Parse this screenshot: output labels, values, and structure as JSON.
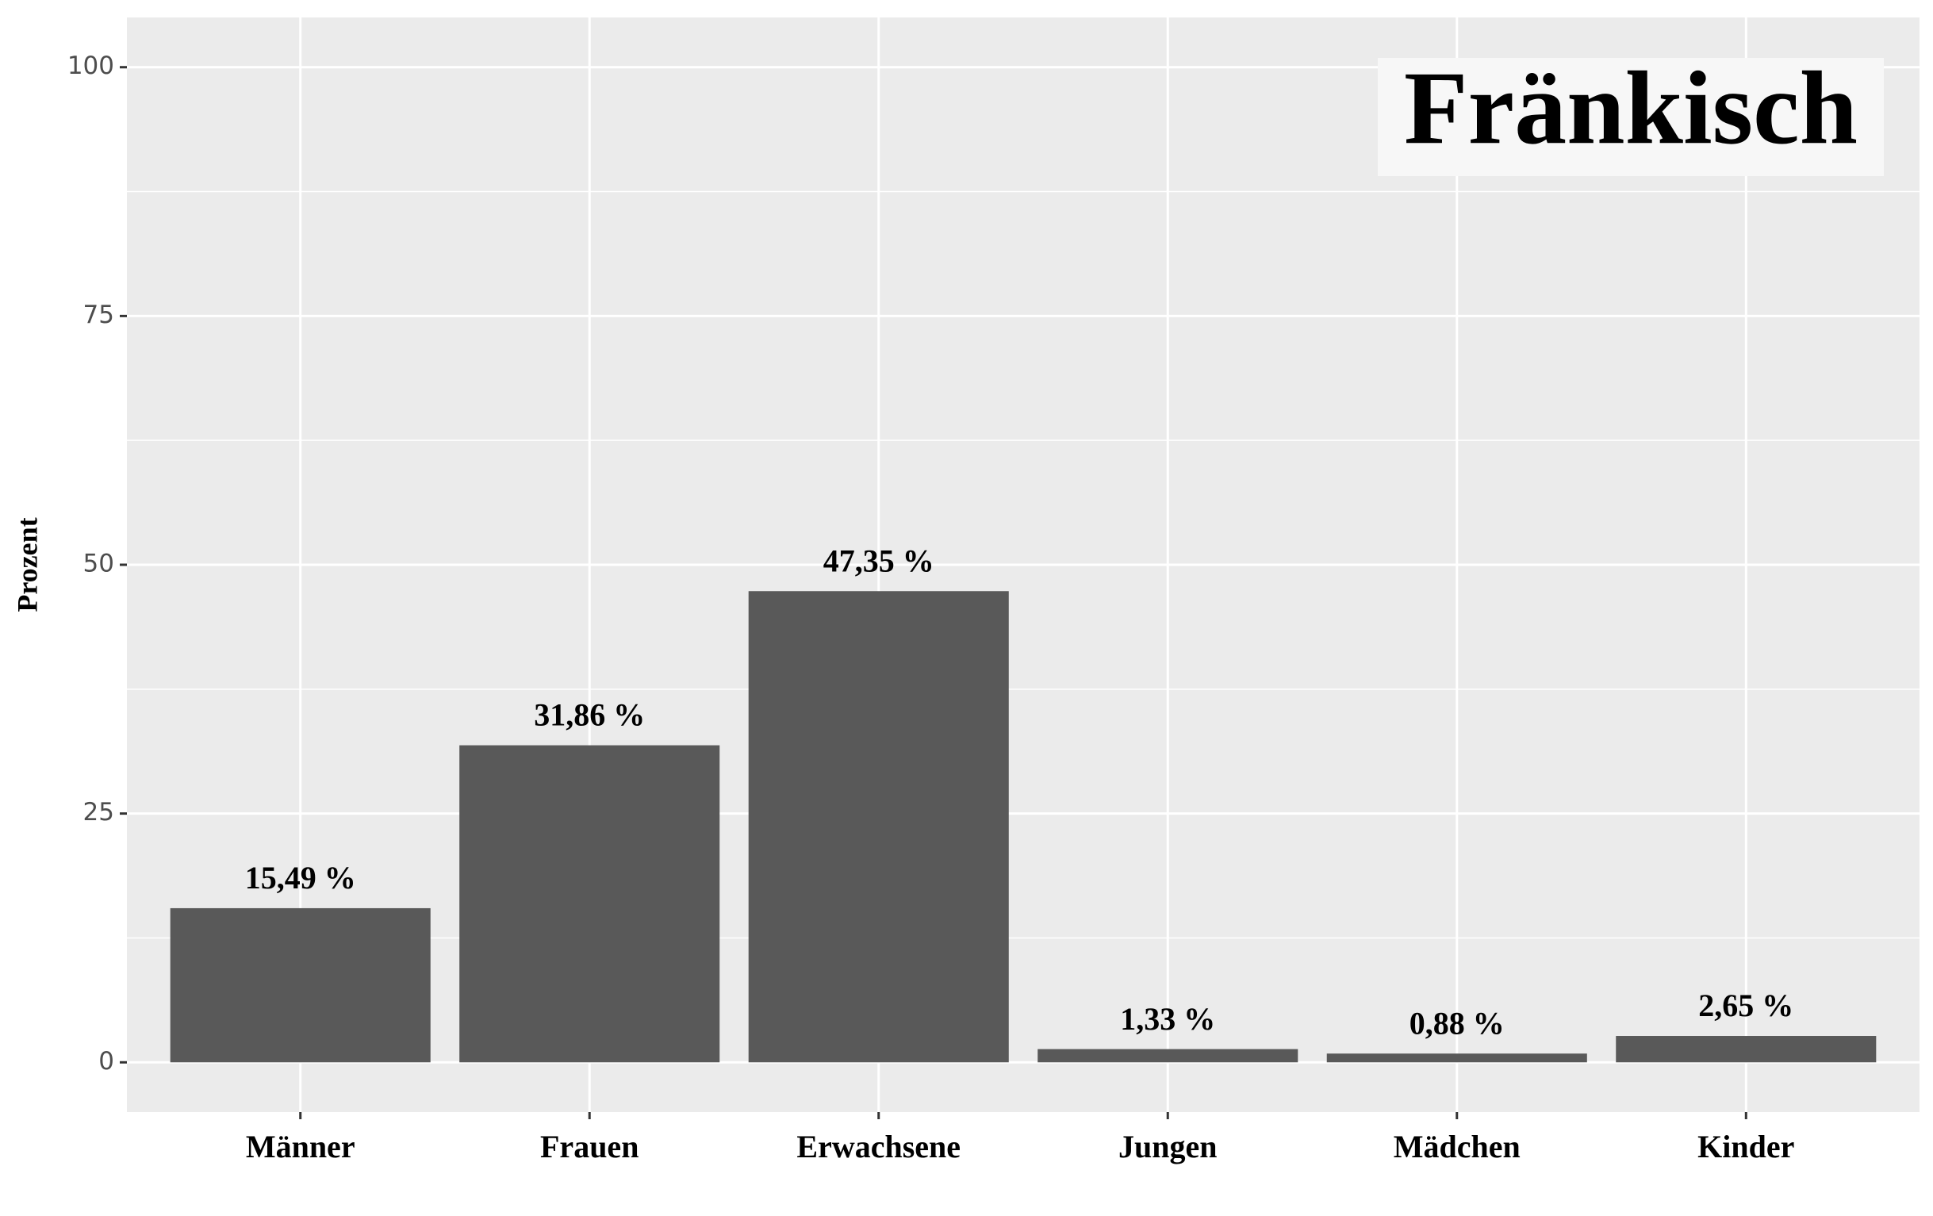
{
  "chart_data": {
    "type": "bar",
    "title": "Fränkisch",
    "y_label": "Prozent",
    "categories": [
      "Männer",
      "Frauen",
      "Erwachsene",
      "Jungen",
      "Mädchen",
      "Kinder"
    ],
    "values": [
      15.49,
      31.86,
      47.35,
      1.33,
      0.88,
      2.65
    ],
    "value_labels": [
      "15,49 %",
      "31,86 %",
      "47,35 %",
      "1,33 %",
      "0,88 %",
      "2,65 %"
    ],
    "color": "#595959",
    "ylim": [
      -5,
      105
    ],
    "yticks": [
      0,
      25,
      50,
      75,
      100
    ],
    "grid": true
  }
}
